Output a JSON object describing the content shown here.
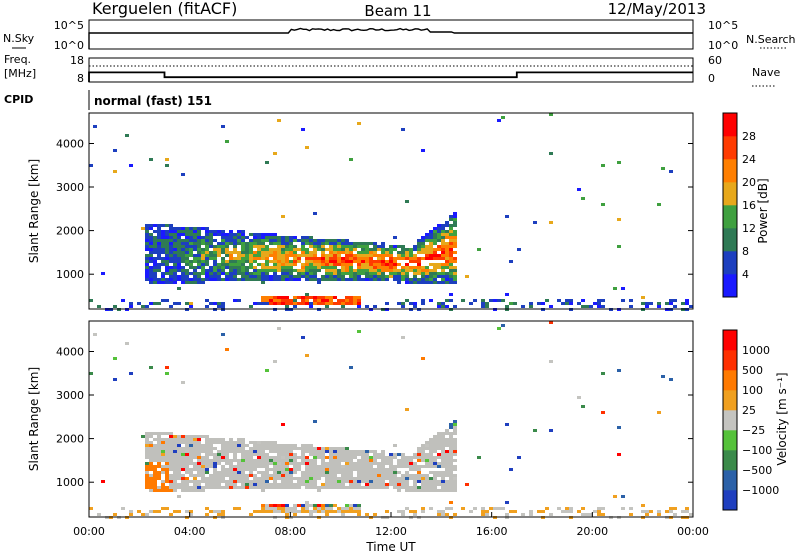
{
  "header": {
    "station": "Kerguelen (fitACF)",
    "beam": "Beam 11",
    "date": "12/May/2013"
  },
  "top_panels": {
    "nsky": {
      "left_label": "N.Sky",
      "left_ticks": [
        "10^5",
        "10^0"
      ],
      "right_ticks": [
        "10^5",
        "10^0"
      ],
      "right_label": "N.Search"
    },
    "freq": {
      "left_label_line1": "Freq.",
      "left_label_line2": "[MHz]",
      "left_ticks": [
        "18",
        "8"
      ],
      "right_ticks": [
        "60",
        "0"
      ],
      "right_label": "Nave"
    },
    "cpid": {
      "label": "CPID",
      "text": "normal (fast) 151"
    }
  },
  "colors": {
    "power_scale": [
      "#1a1aff",
      "#1d3fbf",
      "#2f7a55",
      "#3fa03f",
      "#e7a81b",
      "#ff7f00",
      "#ff3b00",
      "#ff0000"
    ],
    "velocity_scale": [
      "#1f3fbf",
      "#2b61a8",
      "#3a8a4a",
      "#55c23a",
      "#c4c4c0",
      "#f0a020",
      "#ff7a00",
      "#ff3000",
      "#ff0000"
    ],
    "ground_scatter": "#c0c0bc"
  },
  "chart_data": [
    {
      "type": "heatmap",
      "name": "power",
      "ylabel": "Slant Range [km]",
      "ytick_labels": [
        "1000",
        "2000",
        "3000",
        "4000"
      ],
      "ylim": [
        200,
        4700
      ],
      "xlim": [
        0,
        24
      ],
      "colorbar": {
        "label": "Power [dB]",
        "tick_labels": [
          "4",
          "8",
          "12",
          "16",
          "20",
          "24",
          "28"
        ],
        "range": [
          0,
          32
        ]
      },
      "echo_regions": [
        {
          "t_start": 2.2,
          "t_end": 14.6,
          "range_low": 800,
          "range_high": 2200,
          "peak_power_db": 30
        },
        {
          "t_start": 6.8,
          "t_end": 10.8,
          "range_low": 300,
          "range_high": 500,
          "peak_power_db": 28
        },
        {
          "t_start": 0.0,
          "t_end": 24.0,
          "range_low": 200,
          "range_high": 450,
          "peak_power_db": 6
        }
      ]
    },
    {
      "type": "heatmap",
      "name": "velocity",
      "ylabel": "Slant Range [km]",
      "xlabel": "Time UT",
      "ytick_labels": [
        "1000",
        "2000",
        "3000",
        "4000"
      ],
      "xtick_labels": [
        "00:00",
        "04:00",
        "08:00",
        "12:00",
        "16:00",
        "20:00",
        "00:00"
      ],
      "ylim": [
        200,
        4700
      ],
      "xlim": [
        0,
        24
      ],
      "colorbar": {
        "label": "Velocity [m s⁻¹]",
        "tick_labels": [
          "1000",
          "500",
          "100",
          "25",
          "−25",
          "−100",
          "−500",
          "−1000"
        ]
      }
    },
    {
      "type": "line",
      "name": "frequency",
      "series": [
        {
          "x": [
            0,
            3.0,
            3.0,
            17.0,
            17.0,
            24
          ],
          "values": [
            12.0,
            12.0,
            10.0,
            10.0,
            12.0,
            12.0
          ]
        }
      ]
    }
  ]
}
